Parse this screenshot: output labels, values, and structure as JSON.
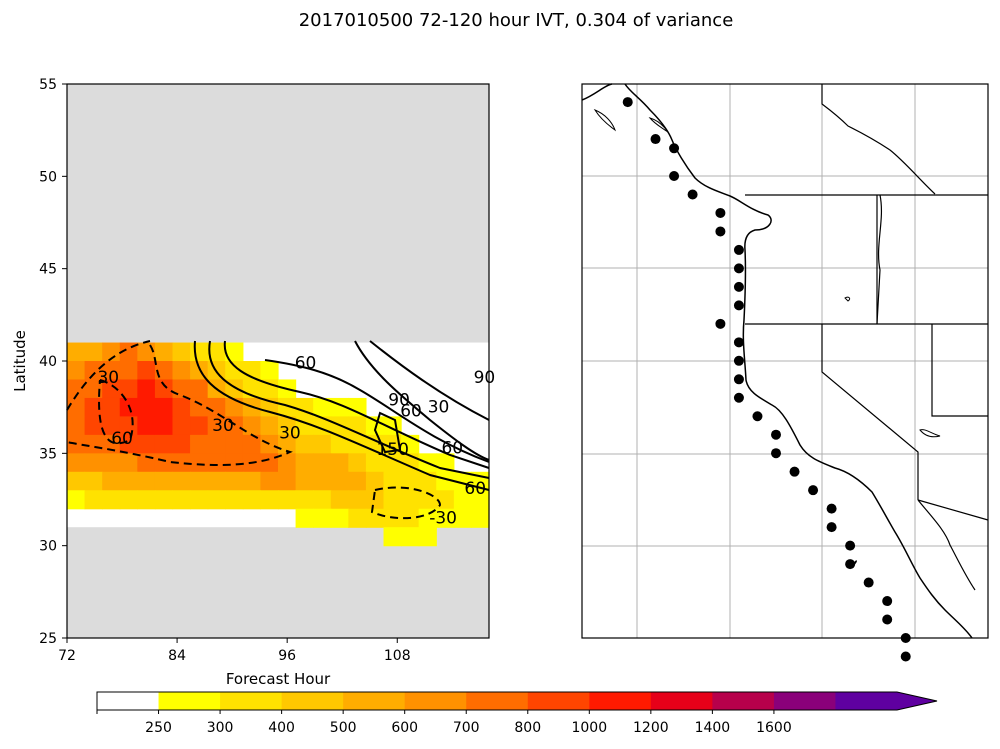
{
  "title": "2017010500 72-120 hour IVT, 0.304 of variance",
  "chart_data": [
    {
      "type": "heatmap",
      "xlabel": "Forecast Hour",
      "ylabel": "Latitude",
      "xlim": [
        72,
        118
      ],
      "ylim": [
        25,
        55
      ],
      "x_ticks": [
        "72",
        "84",
        "96",
        "108"
      ],
      "y_ticks": [
        "25",
        "30",
        "35",
        "40",
        "45",
        "50",
        "55"
      ],
      "masked_regions": [
        {
          "lat_from": 41,
          "lat_to": 55,
          "color": "#dcdcdc"
        },
        {
          "lat_from": 25,
          "lat_to": 31,
          "color": "#dcdcdc"
        }
      ],
      "fill_rows": [
        {
          "lat": 41.0,
          "values": [
            500,
            500,
            600,
            700,
            600,
            500,
            400,
            300,
            300,
            260,
            0,
            0,
            0,
            0,
            0,
            0,
            0,
            0,
            0,
            0,
            0,
            0,
            0,
            0
          ]
        },
        {
          "lat": 40.0,
          "values": [
            600,
            700,
            700,
            700,
            800,
            700,
            600,
            500,
            400,
            300,
            300,
            260,
            0,
            0,
            0,
            0,
            0,
            0,
            0,
            0,
            0,
            0,
            0,
            0
          ]
        },
        {
          "lat": 39.0,
          "values": [
            700,
            700,
            800,
            800,
            1000,
            800,
            700,
            700,
            500,
            400,
            300,
            300,
            260,
            0,
            0,
            0,
            0,
            0,
            0,
            0,
            0,
            0,
            0,
            0
          ]
        },
        {
          "lat": 38.0,
          "values": [
            700,
            800,
            800,
            1000,
            1000,
            1000,
            800,
            700,
            700,
            600,
            500,
            400,
            300,
            300,
            260,
            260,
            260,
            0,
            0,
            0,
            0,
            0,
            0,
            0
          ]
        },
        {
          "lat": 37.0,
          "values": [
            700,
            800,
            800,
            800,
            1000,
            1000,
            800,
            800,
            700,
            700,
            600,
            500,
            400,
            300,
            300,
            300,
            300,
            260,
            260,
            0,
            0,
            0,
            0,
            0
          ]
        },
        {
          "lat": 36.0,
          "values": [
            700,
            700,
            700,
            800,
            800,
            800,
            800,
            700,
            700,
            700,
            700,
            600,
            500,
            400,
            400,
            300,
            300,
            300,
            300,
            260,
            0,
            0,
            0,
            0
          ]
        },
        {
          "lat": 35.0,
          "values": [
            600,
            600,
            600,
            600,
            700,
            700,
            700,
            700,
            700,
            700,
            700,
            700,
            600,
            500,
            500,
            500,
            400,
            300,
            300,
            300,
            260,
            260,
            0,
            0
          ]
        },
        {
          "lat": 34.0,
          "values": [
            400,
            400,
            500,
            500,
            500,
            500,
            500,
            500,
            500,
            500,
            500,
            600,
            600,
            500,
            500,
            500,
            500,
            400,
            300,
            300,
            300,
            260,
            260,
            260
          ]
        },
        {
          "lat": 33.0,
          "values": [
            260,
            300,
            300,
            300,
            300,
            300,
            300,
            300,
            300,
            300,
            300,
            300,
            300,
            300,
            300,
            400,
            400,
            400,
            300,
            300,
            300,
            300,
            260,
            260
          ]
        },
        {
          "lat": 32.0,
          "values": [
            0,
            0,
            0,
            0,
            0,
            0,
            0,
            0,
            0,
            0,
            0,
            0,
            0,
            260,
            260,
            260,
            300,
            300,
            300,
            300,
            260,
            260,
            260,
            260
          ]
        },
        {
          "lat": 31.0,
          "values": [
            0,
            0,
            0,
            0,
            0,
            0,
            0,
            0,
            0,
            0,
            0,
            0,
            0,
            0,
            0,
            0,
            0,
            0,
            260,
            260,
            260,
            0,
            0,
            0
          ]
        }
      ],
      "contour_labels": [
        {
          "text": "60",
          "x": 98,
          "y": 39.6
        },
        {
          "text": "30",
          "x": 76.5,
          "y": 38.8
        },
        {
          "text": "60",
          "x": 78,
          "y": 35.5
        },
        {
          "text": "30",
          "x": 89,
          "y": 36.2
        },
        {
          "text": "30",
          "x": 96.3,
          "y": 35.8
        },
        {
          "text": "90",
          "x": 108.2,
          "y": 37.6
        },
        {
          "text": "60",
          "x": 109.5,
          "y": 37.0
        },
        {
          "text": "30",
          "x": 112.5,
          "y": 37.2
        },
        {
          "text": "60",
          "x": 114,
          "y": 35.0
        },
        {
          "text": "150",
          "x": 107.5,
          "y": 34.9
        },
        {
          "text": "90",
          "x": 117.5,
          "y": 38.8
        },
        {
          "text": "60",
          "x": 116.5,
          "y": 32.8
        },
        {
          "text": "-30",
          "x": 113,
          "y": 31.2
        }
      ]
    },
    {
      "type": "colorbar",
      "boundaries": [
        0,
        250,
        300,
        400,
        500,
        600,
        700,
        800,
        1000,
        1200,
        1400,
        1600,
        1800
      ],
      "tick_labels": [
        "250",
        "300",
        "400",
        "500",
        "600",
        "700",
        "800",
        "1000",
        "1200",
        "1400",
        "1600"
      ],
      "colors": [
        "#ffffff",
        "#ffff00",
        "#ffe200",
        "#ffc800",
        "#ffad00",
        "#ff9100",
        "#ff6d00",
        "#ff4500",
        "#ff1a00",
        "#e60019",
        "#b7004b",
        "#8a007a",
        "#5f00a0"
      ],
      "extend": "max"
    },
    {
      "type": "map",
      "lon_lines": [
        -135,
        -125,
        -115,
        -105
      ],
      "lat_lines": [
        25,
        30,
        35,
        40,
        45,
        50
      ],
      "region": "west coast of North America",
      "station_points": [
        {
          "lon": -136.0,
          "lat": 54.0
        },
        {
          "lon": -133.0,
          "lat": 52.0
        },
        {
          "lon": -131.0,
          "lat": 51.5
        },
        {
          "lon": -131.0,
          "lat": 50.0
        },
        {
          "lon": -129.0,
          "lat": 49.0
        },
        {
          "lon": -126.0,
          "lat": 48.0
        },
        {
          "lon": -126.0,
          "lat": 47.0
        },
        {
          "lon": -124.0,
          "lat": 46.0
        },
        {
          "lon": -124.0,
          "lat": 45.0
        },
        {
          "lon": -124.0,
          "lat": 44.0
        },
        {
          "lon": -124.0,
          "lat": 43.0
        },
        {
          "lon": -126.0,
          "lat": 42.0
        },
        {
          "lon": -124.0,
          "lat": 41.0
        },
        {
          "lon": -124.0,
          "lat": 40.0
        },
        {
          "lon": -124.0,
          "lat": 39.0
        },
        {
          "lon": -124.0,
          "lat": 38.0
        },
        {
          "lon": -122.0,
          "lat": 37.0
        },
        {
          "lon": -120.0,
          "lat": 36.0
        },
        {
          "lon": -120.0,
          "lat": 35.0
        },
        {
          "lon": -118.0,
          "lat": 34.0
        },
        {
          "lon": -116.0,
          "lat": 33.0
        },
        {
          "lon": -114.0,
          "lat": 32.0
        },
        {
          "lon": -114.0,
          "lat": 31.0
        },
        {
          "lon": -112.0,
          "lat": 30.0
        },
        {
          "lon": -112.0,
          "lat": 29.0
        },
        {
          "lon": -110.0,
          "lat": 28.0
        },
        {
          "lon": -108.0,
          "lat": 27.0
        },
        {
          "lon": -108.0,
          "lat": 26.0
        },
        {
          "lon": -106.0,
          "lat": 25.0
        },
        {
          "lon": -106.0,
          "lat": 24.0
        }
      ]
    }
  ]
}
